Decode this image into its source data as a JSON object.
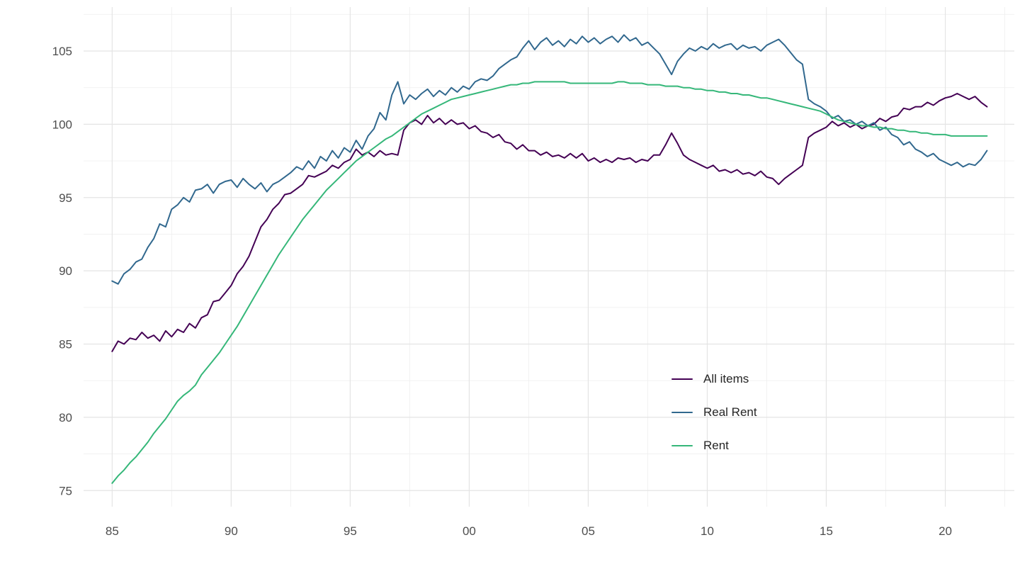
{
  "chart_data": {
    "type": "line",
    "title": "",
    "xlabel": "",
    "ylabel": "",
    "grid": true,
    "legend_position": "inside-right",
    "x_start_year": 1985,
    "points_per_year": 4,
    "x_domain": [
      1983.8,
      2022.9
    ],
    "y_domain": [
      73.9,
      108.0
    ],
    "x_ticks": [
      {
        "v": 1985,
        "label": "85"
      },
      {
        "v": 1990,
        "label": "90"
      },
      {
        "v": 1995,
        "label": "95"
      },
      {
        "v": 2000,
        "label": "00"
      },
      {
        "v": 2005,
        "label": "05"
      },
      {
        "v": 2010,
        "label": "10"
      },
      {
        "v": 2015,
        "label": "15"
      },
      {
        "v": 2020,
        "label": "20"
      }
    ],
    "y_ticks": [
      {
        "v": 75,
        "label": "75"
      },
      {
        "v": 80,
        "label": "80"
      },
      {
        "v": 85,
        "label": "85"
      },
      {
        "v": 90,
        "label": "90"
      },
      {
        "v": 95,
        "label": "95"
      },
      {
        "v": 100,
        "label": "100"
      },
      {
        "v": 105,
        "label": "105"
      }
    ],
    "x_minor": [
      1987.5,
      1992.5,
      1997.5,
      2002.5,
      2007.5,
      2012.5,
      2017.5,
      2022.5
    ],
    "y_minor": [
      77.5,
      82.5,
      87.5,
      92.5,
      97.5,
      102.5,
      107.5
    ],
    "style": {
      "background": "#ffffff",
      "grid_major_color": "#e4e4e4",
      "grid_minor_color": "#f0f0f0",
      "axis_text_color": "#4d4d4d",
      "axis_text_size": 17,
      "line_width": 2
    },
    "series": [
      {
        "name": "All items",
        "color": "#440154",
        "values": [
          84.5,
          85.2,
          85.0,
          85.4,
          85.3,
          85.8,
          85.4,
          85.6,
          85.2,
          85.9,
          85.5,
          86.0,
          85.8,
          86.4,
          86.1,
          86.8,
          87.0,
          87.9,
          88.0,
          88.5,
          89.0,
          89.8,
          90.3,
          91.0,
          92.0,
          93.0,
          93.5,
          94.2,
          94.6,
          95.2,
          95.3,
          95.6,
          95.9,
          96.5,
          96.4,
          96.6,
          96.8,
          97.2,
          97.0,
          97.4,
          97.6,
          98.3,
          97.9,
          98.1,
          97.8,
          98.2,
          97.9,
          98.0,
          97.9,
          99.6,
          100.1,
          100.3,
          100.0,
          100.6,
          100.1,
          100.4,
          100.0,
          100.3,
          100.0,
          100.1,
          99.7,
          99.9,
          99.5,
          99.4,
          99.1,
          99.3,
          98.8,
          98.7,
          98.3,
          98.6,
          98.2,
          98.2,
          97.9,
          98.1,
          97.8,
          97.9,
          97.7,
          98.0,
          97.7,
          98.0,
          97.5,
          97.7,
          97.4,
          97.6,
          97.4,
          97.7,
          97.6,
          97.7,
          97.4,
          97.6,
          97.5,
          97.9,
          97.9,
          98.6,
          99.4,
          98.7,
          97.9,
          97.6,
          97.4,
          97.2,
          97.0,
          97.2,
          96.8,
          96.9,
          96.7,
          96.9,
          96.6,
          96.7,
          96.5,
          96.8,
          96.4,
          96.3,
          95.9,
          96.3,
          96.6,
          96.9,
          97.2,
          99.1,
          99.4,
          99.6,
          99.8,
          100.2,
          99.9,
          100.1,
          99.8,
          100.0,
          99.7,
          99.9,
          100.0,
          100.4,
          100.2,
          100.5,
          100.6,
          101.1,
          101.0,
          101.2,
          101.2,
          101.5,
          101.3,
          101.6,
          101.8,
          101.9,
          102.1,
          101.9,
          101.7,
          101.9,
          101.5,
          101.2
        ]
      },
      {
        "name": "Real Rent",
        "color": "#31688E",
        "values": [
          89.3,
          89.1,
          89.8,
          90.1,
          90.6,
          90.8,
          91.6,
          92.2,
          93.2,
          93.0,
          94.2,
          94.5,
          95.0,
          94.7,
          95.5,
          95.6,
          95.9,
          95.3,
          95.9,
          96.1,
          96.2,
          95.7,
          96.3,
          95.9,
          95.6,
          96.0,
          95.4,
          95.9,
          96.1,
          96.4,
          96.7,
          97.1,
          96.9,
          97.5,
          97.0,
          97.8,
          97.5,
          98.2,
          97.7,
          98.4,
          98.1,
          98.9,
          98.3,
          99.2,
          99.7,
          100.8,
          100.3,
          102.0,
          102.9,
          101.4,
          102.0,
          101.7,
          102.1,
          102.4,
          101.9,
          102.3,
          102.0,
          102.5,
          102.2,
          102.6,
          102.4,
          102.9,
          103.1,
          103.0,
          103.3,
          103.8,
          104.1,
          104.4,
          104.6,
          105.2,
          105.7,
          105.1,
          105.6,
          105.9,
          105.4,
          105.7,
          105.3,
          105.8,
          105.5,
          106.0,
          105.6,
          105.9,
          105.5,
          105.8,
          106.0,
          105.6,
          106.1,
          105.7,
          105.9,
          105.4,
          105.6,
          105.2,
          104.8,
          104.1,
          103.4,
          104.3,
          104.8,
          105.2,
          105.0,
          105.3,
          105.1,
          105.5,
          105.2,
          105.4,
          105.5,
          105.1,
          105.4,
          105.2,
          105.3,
          105.0,
          105.4,
          105.6,
          105.8,
          105.4,
          104.9,
          104.4,
          104.1,
          101.7,
          101.4,
          101.2,
          100.9,
          100.4,
          100.6,
          100.2,
          100.3,
          100.0,
          100.2,
          99.9,
          100.1,
          99.6,
          99.8,
          99.3,
          99.1,
          98.6,
          98.8,
          98.3,
          98.1,
          97.8,
          98.0,
          97.6,
          97.4,
          97.2,
          97.4,
          97.1,
          97.3,
          97.2,
          97.6,
          98.2
        ]
      },
      {
        "name": "Rent",
        "color": "#35B779",
        "values": [
          75.5,
          76.0,
          76.4,
          76.9,
          77.3,
          77.8,
          78.3,
          78.9,
          79.4,
          79.9,
          80.5,
          81.1,
          81.5,
          81.8,
          82.2,
          82.9,
          83.4,
          83.9,
          84.4,
          85.0,
          85.6,
          86.2,
          86.9,
          87.6,
          88.3,
          89.0,
          89.7,
          90.4,
          91.1,
          91.7,
          92.3,
          92.9,
          93.5,
          94.0,
          94.5,
          95.0,
          95.5,
          95.9,
          96.3,
          96.7,
          97.1,
          97.5,
          97.8,
          98.1,
          98.4,
          98.7,
          99.0,
          99.2,
          99.5,
          99.8,
          100.1,
          100.4,
          100.7,
          100.9,
          101.1,
          101.3,
          101.5,
          101.7,
          101.8,
          101.9,
          102.0,
          102.1,
          102.2,
          102.3,
          102.4,
          102.5,
          102.6,
          102.7,
          102.7,
          102.8,
          102.8,
          102.9,
          102.9,
          102.9,
          102.9,
          102.9,
          102.9,
          102.8,
          102.8,
          102.8,
          102.8,
          102.8,
          102.8,
          102.8,
          102.8,
          102.9,
          102.9,
          102.8,
          102.8,
          102.8,
          102.7,
          102.7,
          102.7,
          102.6,
          102.6,
          102.6,
          102.5,
          102.5,
          102.4,
          102.4,
          102.3,
          102.3,
          102.2,
          102.2,
          102.1,
          102.1,
          102.0,
          102.0,
          101.9,
          101.8,
          101.8,
          101.7,
          101.6,
          101.5,
          101.4,
          101.3,
          101.2,
          101.1,
          101.0,
          100.9,
          100.7,
          100.5,
          100.3,
          100.2,
          100.1,
          100.0,
          99.9,
          99.9,
          99.8,
          99.8,
          99.7,
          99.7,
          99.6,
          99.6,
          99.5,
          99.5,
          99.4,
          99.4,
          99.3,
          99.3,
          99.3,
          99.2,
          99.2,
          99.2,
          99.2,
          99.2,
          99.2,
          99.2
        ]
      }
    ]
  },
  "legend": {
    "items": [
      {
        "label": "All items"
      },
      {
        "label": "Real Rent"
      },
      {
        "label": "Rent"
      }
    ]
  }
}
